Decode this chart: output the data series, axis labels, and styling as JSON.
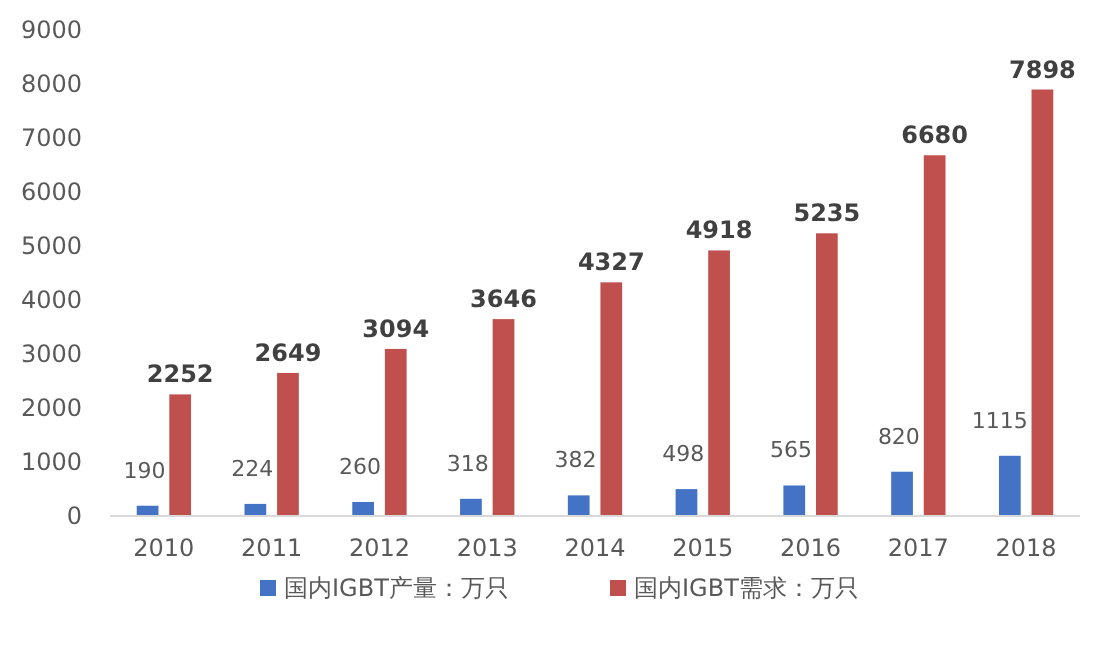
{
  "chart_data": {
    "type": "bar",
    "categories": [
      "2010",
      "2011",
      "2012",
      "2013",
      "2014",
      "2015",
      "2016",
      "2017",
      "2018"
    ],
    "series": [
      {
        "name": "国内IGBT产量：万只",
        "color": "#4472c4",
        "values": [
          190,
          224,
          260,
          318,
          382,
          498,
          565,
          820,
          1115
        ]
      },
      {
        "name": "国内IGBT需求：万只",
        "color": "#c0504d",
        "values": [
          2252,
          2649,
          3094,
          3646,
          4327,
          4918,
          5235,
          6680,
          7898
        ]
      }
    ],
    "ylim": [
      0,
      9000
    ],
    "yticks": [
      0,
      1000,
      2000,
      3000,
      4000,
      5000,
      6000,
      7000,
      8000,
      9000
    ],
    "grid": false,
    "legend": "bottom",
    "data_labels": true
  }
}
